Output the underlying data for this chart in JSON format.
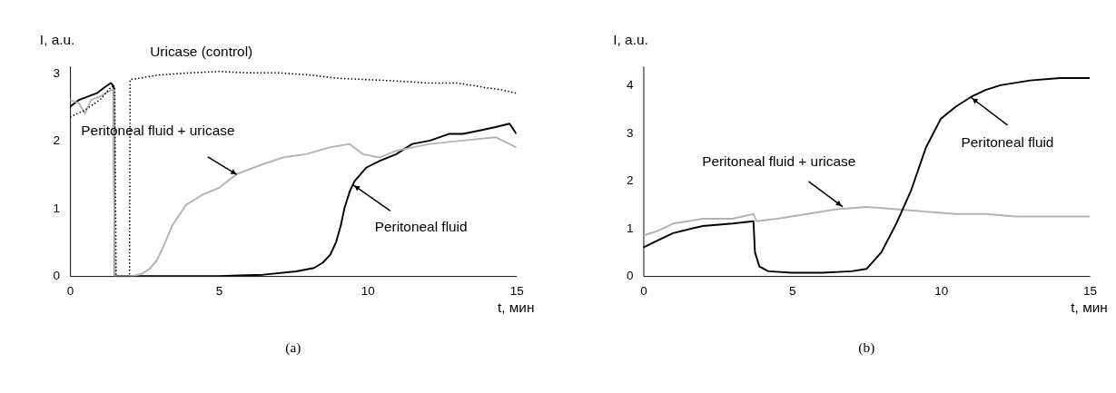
{
  "chart_data": [
    {
      "type": "line",
      "title": "(a)",
      "xlabel": "t, мин",
      "ylabel": "I, a.u.",
      "xlim": [
        0,
        15
      ],
      "xticks": [
        0,
        5,
        10,
        15
      ],
      "ylim": [
        0,
        3.1
      ],
      "yticks": [
        0,
        1,
        2,
        3
      ],
      "grid": false,
      "annotations": [
        {
          "text": "Peritoneal fluid + uricase",
          "x": 5.6,
          "y": 1.5
        },
        {
          "text": "Peritoneal fluid",
          "x": 9.5,
          "y": 1.35
        }
      ],
      "series": [
        {
          "color": "#000000",
          "line_style": "solid",
          "x": [
            0,
            0.3,
            0.6,
            0.9,
            1.2,
            1.37,
            1.47,
            1.5,
            3,
            5,
            6.5,
            7.6,
            8.2,
            8.5,
            8.75,
            8.94,
            9.1,
            9.22,
            9.4,
            9.56,
            9.95,
            10.4,
            10.96,
            11.5,
            12.1,
            12.75,
            13.2,
            13.77,
            14.3,
            14.77,
            15
          ],
          "values": [
            2.5,
            2.6,
            2.65,
            2.7,
            2.8,
            2.85,
            2.8,
            0,
            0,
            0,
            0.02,
            0.07,
            0.12,
            0.2,
            0.32,
            0.5,
            0.75,
            1.0,
            1.25,
            1.4,
            1.6,
            1.7,
            1.8,
            1.95,
            2.0,
            2.1,
            2.1,
            2.15,
            2.2,
            2.25,
            2.1
          ]
        },
        {
          "color": "#b3b3b3",
          "line_style": "solid",
          "x": [
            0,
            0.3,
            0.5,
            0.7,
            1.0,
            1.2,
            1.4,
            1.47,
            1.5,
            2.1,
            2.4,
            2.66,
            2.9,
            3.1,
            3.44,
            3.9,
            4.45,
            5.0,
            5.58,
            6.47,
            7.15,
            7.93,
            8.72,
            9.39,
            9.84,
            10.4,
            10.96,
            12.08,
            13.2,
            14.3,
            15
          ],
          "values": [
            2.6,
            2.55,
            2.4,
            2.6,
            2.65,
            2.7,
            2.75,
            2.75,
            0,
            0,
            0.03,
            0.1,
            0.22,
            0.4,
            0.75,
            1.05,
            1.2,
            1.3,
            1.5,
            1.65,
            1.75,
            1.8,
            1.9,
            1.95,
            1.8,
            1.75,
            1.85,
            1.95,
            2.0,
            2.05,
            1.9
          ]
        },
        {
          "name": "Uricase (control)",
          "color": "#000000",
          "line_style": "dotted",
          "x": [
            0,
            0.5,
            1.0,
            1.4,
            1.5,
            1.55,
            2.0,
            2.02,
            3,
            4,
            5,
            6,
            7,
            8,
            9,
            10,
            11,
            12,
            13,
            14,
            14.5,
            15
          ],
          "values": [
            2.35,
            2.45,
            2.6,
            2.8,
            2.78,
            0,
            0,
            2.9,
            2.97,
            3.0,
            3.02,
            3.0,
            3.0,
            2.97,
            2.92,
            2.9,
            2.88,
            2.85,
            2.85,
            2.78,
            2.75,
            2.7
          ]
        }
      ]
    },
    {
      "type": "line",
      "title": "(b)",
      "xlabel": "t, мин",
      "ylabel": "I, a.u.",
      "xlim": [
        0,
        15
      ],
      "xticks": [
        0,
        5,
        10,
        15
      ],
      "ylim": [
        0,
        4.4
      ],
      "yticks": [
        0,
        1,
        2,
        3,
        4
      ],
      "grid": false,
      "annotations": [
        {
          "text": "Peritoneal fluid + uricase",
          "x": 6.7,
          "y": 1.45
        },
        {
          "text": "Peritoneal fluid",
          "x": 11,
          "y": 3.75
        }
      ],
      "series": [
        {
          "color": "#b3b3b3",
          "line_style": "solid",
          "x": [
            0,
            0.5,
            1,
            2,
            3,
            3.7,
            3.8,
            4.5,
            5.5,
            6.5,
            7.5,
            8.5,
            9.5,
            10.5,
            11.5,
            12.5,
            13.5,
            14.5,
            15
          ],
          "values": [
            0.85,
            0.95,
            1.1,
            1.2,
            1.2,
            1.3,
            1.15,
            1.2,
            1.3,
            1.4,
            1.45,
            1.4,
            1.35,
            1.3,
            1.3,
            1.25,
            1.25,
            1.25,
            1.25
          ]
        },
        {
          "color": "#000000",
          "line_style": "solid",
          "x": [
            0,
            0.5,
            1,
            2,
            3,
            3.7,
            3.75,
            3.9,
            4.2,
            5,
            6,
            7,
            7.5,
            8,
            8.5,
            9,
            9.5,
            10,
            10.5,
            11,
            11.5,
            12,
            13,
            14,
            15
          ],
          "values": [
            0.6,
            0.75,
            0.9,
            1.05,
            1.1,
            1.15,
            0.5,
            0.2,
            0.1,
            0.07,
            0.07,
            0.1,
            0.15,
            0.5,
            1.1,
            1.8,
            2.7,
            3.3,
            3.55,
            3.75,
            3.9,
            4.0,
            4.1,
            4.15,
            4.15
          ]
        }
      ]
    }
  ]
}
